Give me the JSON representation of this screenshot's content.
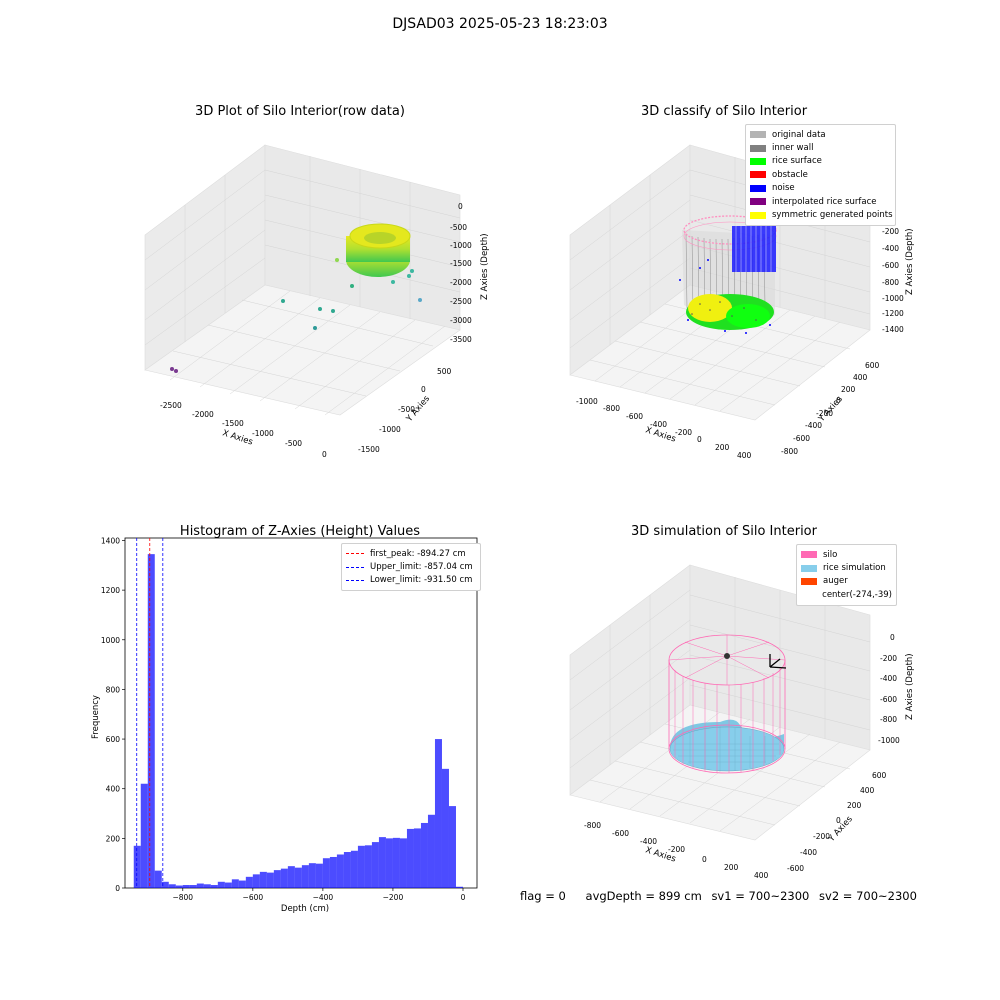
{
  "suptitle": "DJSAD03 2025-05-23 18:23:03",
  "panels": {
    "raw": {
      "title": "3D Plot of Silo Interior(row data)",
      "xlabel": "X Axies",
      "ylabel": "Y Axies",
      "zlabel": "Z Axies (Depth)",
      "xticks": [
        "-2500",
        "-2000",
        "-1500",
        "-1000",
        "-500",
        "0"
      ],
      "yticks": [
        "500",
        "0",
        "-500",
        "-1000",
        "-1500"
      ],
      "zticks": [
        "0",
        "-500",
        "-1000",
        "-1500",
        "-2000",
        "-2500",
        "-3000",
        "-3500"
      ]
    },
    "classify": {
      "title": "3D classify of Silo Interior",
      "xlabel": "X Axies",
      "ylabel": "Y Axies",
      "zlabel": "Z Axies (Depth)",
      "xticks": [
        "-1000",
        "-800",
        "-600",
        "-400",
        "-200",
        "0",
        "200",
        "400"
      ],
      "yticks": [
        "600",
        "400",
        "200",
        "0",
        "-200",
        "-400",
        "-600",
        "-800"
      ],
      "zticks": [
        "-200",
        "-400",
        "-600",
        "-800",
        "-1000",
        "-1200",
        "-1400"
      ],
      "legend": [
        {
          "label": "original data",
          "color": "#b3b3b3"
        },
        {
          "label": "inner wall",
          "color": "#808080"
        },
        {
          "label": "rice surface",
          "color": "#00ff00"
        },
        {
          "label": "obstacle",
          "color": "#ff0000"
        },
        {
          "label": "noise",
          "color": "#0000ff"
        },
        {
          "label": "interpolated rice surface",
          "color": "#800080"
        },
        {
          "label": "symmetric generated points",
          "color": "#ffff00"
        }
      ]
    },
    "simulation": {
      "title": "3D simulation of Silo Interior",
      "xlabel": "X Axies",
      "ylabel": "Y Axies",
      "zlabel": "Z Axies (Depth)",
      "xticks": [
        "-800",
        "-600",
        "-400",
        "-200",
        "0",
        "200",
        "400"
      ],
      "yticks": [
        "600",
        "400",
        "200",
        "0",
        "-200",
        "-400",
        "-600"
      ],
      "zticks": [
        "0",
        "-200",
        "-400",
        "-600",
        "-800",
        "-1000"
      ],
      "legend": [
        {
          "label": "silo",
          "color": "#ff69b4"
        },
        {
          "label": "rice simulation",
          "color": "#87ceeb"
        },
        {
          "label": "auger",
          "color": "#ff4500"
        },
        {
          "label": "center(-274,-39)",
          "color": ""
        }
      ]
    }
  },
  "chart_data": {
    "type": "bar",
    "title": "Histogram of Z-Axies (Height) Values",
    "xlabel": "Depth (cm)",
    "ylabel": "Frequency",
    "xlim": [
      -965,
      40
    ],
    "ylim": [
      0,
      1410
    ],
    "xticks": [
      -800,
      -600,
      -400,
      -200,
      0
    ],
    "yticks": [
      0,
      200,
      400,
      600,
      800,
      1000,
      1200,
      1400
    ],
    "bin_width": 20,
    "bins": [
      [
        -940,
        170
      ],
      [
        -920,
        420
      ],
      [
        -900,
        1345
      ],
      [
        -880,
        70
      ],
      [
        -860,
        25
      ],
      [
        -840,
        15
      ],
      [
        -820,
        10
      ],
      [
        -800,
        12
      ],
      [
        -780,
        12
      ],
      [
        -760,
        18
      ],
      [
        -740,
        15
      ],
      [
        -720,
        12
      ],
      [
        -700,
        25
      ],
      [
        -680,
        22
      ],
      [
        -660,
        35
      ],
      [
        -640,
        30
      ],
      [
        -620,
        45
      ],
      [
        -600,
        55
      ],
      [
        -580,
        65
      ],
      [
        -560,
        62
      ],
      [
        -540,
        72
      ],
      [
        -520,
        78
      ],
      [
        -500,
        88
      ],
      [
        -480,
        82
      ],
      [
        -460,
        92
      ],
      [
        -440,
        100
      ],
      [
        -420,
        98
      ],
      [
        -400,
        120
      ],
      [
        -380,
        125
      ],
      [
        -360,
        135
      ],
      [
        -340,
        145
      ],
      [
        -320,
        150
      ],
      [
        -300,
        170
      ],
      [
        -280,
        172
      ],
      [
        -260,
        185
      ],
      [
        -240,
        205
      ],
      [
        -220,
        200
      ],
      [
        -200,
        202
      ],
      [
        -180,
        200
      ],
      [
        -160,
        238
      ],
      [
        -140,
        240
      ],
      [
        -120,
        262
      ],
      [
        -100,
        295
      ],
      [
        -80,
        600
      ],
      [
        -60,
        480
      ],
      [
        -40,
        330
      ],
      [
        -20,
        5
      ]
    ],
    "bar_color": "#0000ff",
    "vlines": [
      {
        "x": -894.27,
        "color": "#ff0000",
        "label": "first_peak: -894.27 cm"
      },
      {
        "x": -857.04,
        "color": "#0000ff",
        "label": "Upper_limit: -857.04 cm"
      },
      {
        "x": -931.5,
        "color": "#0000ff",
        "label": "Lower_limit: -931.50 cm"
      }
    ],
    "legend_position": "top-right"
  },
  "footer": {
    "flag": "flag = 0",
    "avg_depth": "avgDepth = 899 cm",
    "sv1": "sv1 = 700~2300",
    "sv2": "sv2 = 700~2300"
  }
}
